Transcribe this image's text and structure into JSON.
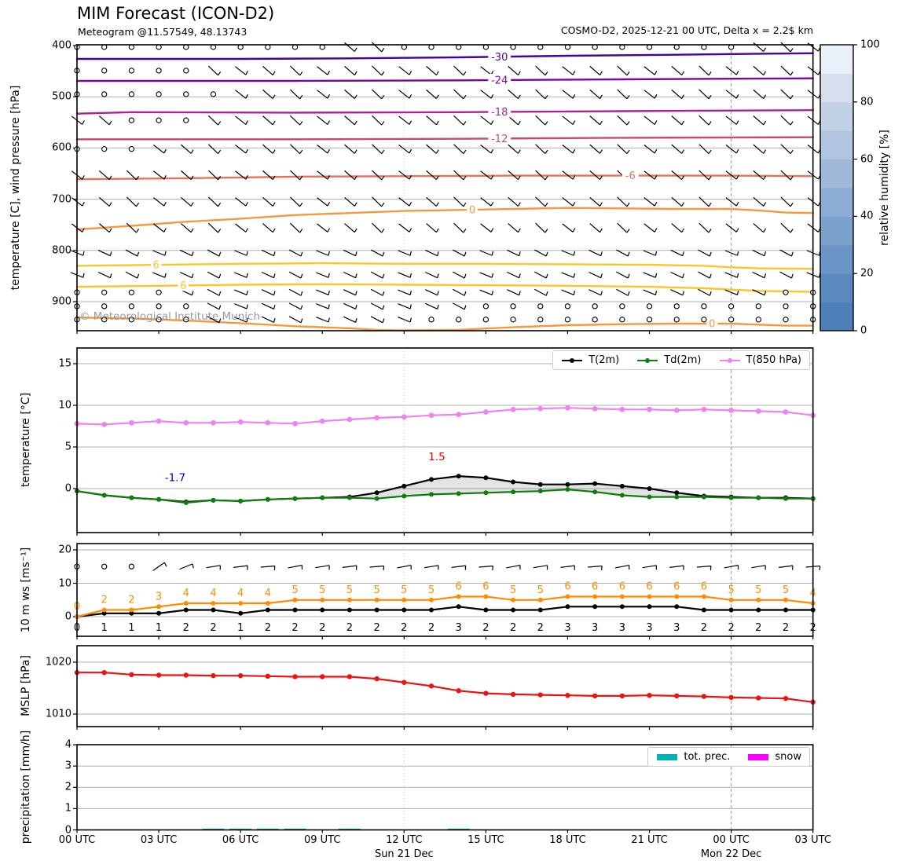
{
  "header": {
    "title": "MIM Forecast (ICON-D2)",
    "subtitle": "Meteogram @11.57549, 48.13743",
    "run_info": "COSMO-D2, 2025-12-21 00 UTC, Delta x = 2.2$ km"
  },
  "watermark": "© Meteorological Institute Munich",
  "time_axis": {
    "hours_total": 27,
    "tick_hours": [
      0,
      3,
      6,
      9,
      12,
      15,
      18,
      21,
      24,
      27
    ],
    "tick_labels": [
      "00 UTC",
      "03 UTC",
      "06 UTC",
      "09 UTC",
      "12 UTC",
      "15 UTC",
      "18 UTC",
      "21 UTC",
      "00 UTC",
      "03 UTC"
    ],
    "day_labels": [
      {
        "label": "Sun 21 Dec",
        "hour": 12
      },
      {
        "label": "Mon 22 Dec",
        "hour": 24
      }
    ]
  },
  "chart_data": [
    {
      "id": "upper-air-panel",
      "type": "heatmap",
      "ylabel": "temperature [C], wind pressure [hPa]",
      "ylim": [
        400,
        957
      ],
      "yticks": [
        400,
        500,
        600,
        700,
        800,
        900
      ],
      "grid": true,
      "contours": [
        {
          "label": "-30",
          "color": "#46039f",
          "label_hour": 15.5,
          "points": [
            [
              0,
              426
            ],
            [
              6,
              426
            ],
            [
              10,
              425
            ],
            [
              14,
              423
            ],
            [
              18,
              420
            ],
            [
              22,
              418
            ],
            [
              25,
              416
            ],
            [
              27,
              415
            ]
          ]
        },
        {
          "label": "-24",
          "color": "#7e03a8",
          "label_hour": 15.5,
          "points": [
            [
              0,
              469
            ],
            [
              8,
              469
            ],
            [
              14,
              468
            ],
            [
              20,
              466
            ],
            [
              27,
              464
            ]
          ]
        },
        {
          "label": "-18",
          "color": "#aa2395",
          "label_hour": 15.5,
          "points": [
            [
              0,
              533
            ],
            [
              2,
              530
            ],
            [
              8,
              531
            ],
            [
              14,
              530
            ],
            [
              20,
              528
            ],
            [
              27,
              526
            ]
          ]
        },
        {
          "label": "-12",
          "color": "#ca4778",
          "label_hour": 15.5,
          "points": [
            [
              0,
              583
            ],
            [
              8,
              583
            ],
            [
              14,
              582
            ],
            [
              20,
              580
            ],
            [
              27,
              579
            ]
          ]
        },
        {
          "label": "-6",
          "color": "#e97158",
          "label_hour": 20.3,
          "points": [
            [
              0,
              661
            ],
            [
              4,
              659
            ],
            [
              8,
              656
            ],
            [
              12,
              655
            ],
            [
              16,
              654
            ],
            [
              20,
              654
            ],
            [
              24,
              654
            ],
            [
              27,
              655
            ]
          ]
        },
        {
          "label": "0",
          "color": "#f9973f",
          "label_hour": 14.5,
          "points": [
            [
              0,
              759
            ],
            [
              2,
              752
            ],
            [
              4,
              744
            ],
            [
              6,
              738
            ],
            [
              8,
              731
            ],
            [
              10,
              727
            ],
            [
              12,
              723
            ],
            [
              14,
              721
            ],
            [
              16,
              719
            ],
            [
              18,
              717
            ],
            [
              20,
              718
            ],
            [
              22,
              719
            ],
            [
              24,
              719
            ],
            [
              25,
              722
            ],
            [
              26,
              726
            ],
            [
              27,
              727
            ]
          ]
        },
        {
          "label": "6",
          "color": "#fdc527",
          "label_hour": 2.9,
          "points": [
            [
              0,
              830
            ],
            [
              3,
              828
            ],
            [
              6,
              826
            ],
            [
              9,
              825
            ],
            [
              12,
              826
            ],
            [
              15,
              826
            ],
            [
              18,
              827
            ],
            [
              21,
              828
            ],
            [
              23,
              830
            ],
            [
              24,
              833
            ],
            [
              25,
              835
            ],
            [
              27,
              836
            ]
          ]
        },
        {
          "label": "6",
          "color": "#fdc527",
          "label_hour": 3.9,
          "points": [
            [
              0,
              871
            ],
            [
              3,
              869
            ],
            [
              6,
              867
            ],
            [
              9,
              866
            ],
            [
              12,
              867
            ],
            [
              15,
              868
            ],
            [
              18,
              869
            ],
            [
              21,
              871
            ],
            [
              23,
              874
            ],
            [
              25,
              879
            ],
            [
              27,
              881
            ]
          ]
        },
        {
          "label": "0",
          "color": "#f9973f",
          "label_hour": 23.3,
          "points": [
            [
              0,
              931
            ],
            [
              2,
              933
            ],
            [
              4,
              937
            ],
            [
              6,
              942
            ],
            [
              8,
              948
            ],
            [
              10,
              952
            ],
            [
              11,
              955
            ],
            [
              12,
              956
            ],
            [
              14,
              955
            ],
            [
              16,
              950
            ],
            [
              18,
              946
            ],
            [
              20,
              944
            ],
            [
              22,
              943
            ],
            [
              24,
              943
            ],
            [
              25,
              945
            ],
            [
              26,
              947
            ],
            [
              27,
              947
            ]
          ]
        }
      ],
      "barbs": {
        "rows_hpa": [
          403,
          449,
          495,
          546,
          602,
          653,
          705,
          756,
          805,
          848,
          882,
          909,
          935
        ],
        "cols_hours": 28,
        "calm_ranges": [
          [
            0,
            0,
            9
          ],
          [
            0,
            12,
            24
          ],
          [
            1,
            0,
            4
          ],
          [
            2,
            0,
            5
          ],
          [
            3,
            2,
            4
          ],
          [
            4,
            0,
            2
          ],
          [
            10,
            0,
            3
          ],
          [
            10,
            26,
            27
          ],
          [
            11,
            0,
            4
          ],
          [
            11,
            15,
            27
          ],
          [
            12,
            0,
            4
          ],
          [
            12,
            13,
            27
          ]
        ]
      },
      "colorbar": {
        "label": "relative humidity [%]",
        "ticks": [
          0,
          20,
          40,
          60,
          80,
          100
        ],
        "colors_bottom_to_top": [
          "#4d80b9",
          "#5b8ac1",
          "#6a95c7",
          "#7ba1cd",
          "#8dadd4",
          "#9fb9da",
          "#b1c5e0",
          "#c3d1e7",
          "#d7dfee",
          "#eaf0f8"
        ]
      }
    },
    {
      "id": "temperature-panel",
      "type": "line",
      "ylabel": "temperature [°C]",
      "ylim": [
        -5.4,
        16.9
      ],
      "yticks": [
        0,
        5,
        10,
        15
      ],
      "series": [
        {
          "name": "T(2m)",
          "color": "#000000",
          "values": [
            -0.3,
            -0.8,
            -1.1,
            -1.3,
            -1.6,
            -1.4,
            -1.5,
            -1.3,
            -1.2,
            -1.1,
            -1.0,
            -0.5,
            0.3,
            1.1,
            1.5,
            1.3,
            0.8,
            0.5,
            0.5,
            0.6,
            0.3,
            0.0,
            -0.5,
            -0.9,
            -1.0,
            -1.1,
            -1.1,
            -1.2
          ]
        },
        {
          "name": "Td(2m)",
          "color": "#0e7e0e",
          "values": [
            -0.3,
            -0.8,
            -1.1,
            -1.3,
            -1.7,
            -1.4,
            -1.5,
            -1.3,
            -1.2,
            -1.1,
            -1.1,
            -1.2,
            -0.9,
            -0.7,
            -0.6,
            -0.5,
            -0.4,
            -0.3,
            -0.1,
            -0.4,
            -0.8,
            -1.0,
            -1.0,
            -1.0,
            -1.1,
            -1.1,
            -1.2,
            -1.2
          ]
        },
        {
          "name": "T(850 hPa)",
          "color": "#ee82ee",
          "values": [
            7.8,
            7.7,
            7.9,
            8.1,
            7.9,
            7.9,
            8.0,
            7.9,
            7.8,
            8.1,
            8.3,
            8.5,
            8.6,
            8.8,
            8.9,
            9.2,
            9.5,
            9.6,
            9.7,
            9.6,
            9.5,
            9.5,
            9.4,
            9.5,
            9.4,
            9.3,
            9.2,
            8.8
          ]
        }
      ],
      "annotations": [
        {
          "text": "1.5",
          "color": "#e80000",
          "hour": 13.2,
          "value": 3.4
        },
        {
          "text": "-1.7",
          "color": "#0000cc",
          "hour": 3.6,
          "value": 0.9
        }
      ],
      "legend": [
        "T(2m)",
        "Td(2m)",
        "T(850 hPa)"
      ]
    },
    {
      "id": "wind-panel",
      "type": "line",
      "ylabel": "10 m ws [ms⁻¹]",
      "ylim": [
        -5.9,
        22
      ],
      "yticks": [
        0,
        10,
        20
      ],
      "barb_row_value": 15,
      "calm_hours": [
        0,
        1,
        2
      ],
      "series": [
        {
          "name": "gust",
          "color": "#ff8c00",
          "values": [
            0,
            2,
            2,
            3,
            4,
            4,
            4,
            4,
            5,
            5,
            5,
            5,
            5,
            5,
            6,
            6,
            5,
            5,
            6,
            6,
            6,
            6,
            6,
            6,
            5,
            5,
            5,
            4
          ]
        },
        {
          "name": "mean",
          "color": "#000000",
          "values": [
            0,
            1,
            1,
            1,
            2,
            2,
            1,
            2,
            2,
            2,
            2,
            2,
            2,
            2,
            3,
            2,
            2,
            2,
            3,
            3,
            3,
            3,
            3,
            2,
            2,
            2,
            2,
            2
          ]
        }
      ]
    },
    {
      "id": "mslp-panel",
      "type": "line",
      "ylabel": "MSLP [hPa]",
      "ylim": [
        1007.6,
        1022.2
      ],
      "yticks": [
        1010,
        1020
      ],
      "series": [
        {
          "name": "MSLP",
          "color": "#ee1111",
          "values": [
            1018.0,
            1018.0,
            1017.6,
            1017.5,
            1017.5,
            1017.4,
            1017.4,
            1017.3,
            1017.2,
            1017.2,
            1017.2,
            1016.8,
            1016.1,
            1015.4,
            1014.5,
            1014.0,
            1013.8,
            1013.7,
            1013.6,
            1013.5,
            1013.5,
            1013.6,
            1013.5,
            1013.4,
            1013.2,
            1013.1,
            1013.0,
            1012.3
          ]
        }
      ]
    },
    {
      "id": "precipitation-panel",
      "type": "bar",
      "ylabel": "precipitation [mm/h]",
      "ylim": [
        0,
        4
      ],
      "yticks": [
        0,
        1,
        2,
        3,
        4
      ],
      "series": [
        {
          "name": "tot. prec.",
          "color": "#00b5b0",
          "values": [
            0,
            0,
            0,
            0,
            0,
            0.04,
            0.04,
            0.04,
            0.04,
            0,
            0.04,
            0,
            0,
            0,
            0.04,
            0,
            0,
            0,
            0,
            0,
            0,
            0,
            0,
            0,
            0,
            0,
            0,
            0
          ]
        },
        {
          "name": "snow",
          "color": "#ff00ff",
          "values": [
            0,
            0,
            0,
            0,
            0,
            0,
            0,
            0,
            0,
            0,
            0,
            0,
            0,
            0,
            0,
            0,
            0,
            0,
            0,
            0,
            0,
            0,
            0,
            0,
            0,
            0,
            0,
            0
          ]
        }
      ],
      "legend": [
        "tot. prec.",
        "snow"
      ]
    }
  ]
}
